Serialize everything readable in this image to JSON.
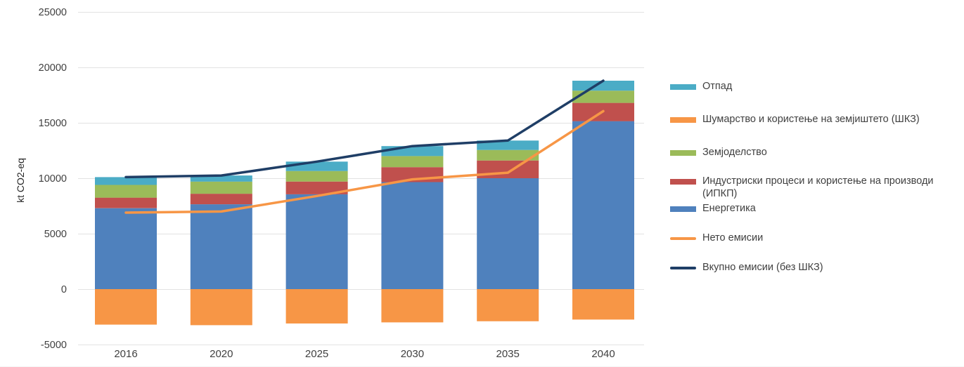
{
  "chart_data": {
    "type": "bar",
    "subtype": "stacked-bar-with-lines",
    "title": "",
    "xlabel": "",
    "ylabel": "kt CO2-eq",
    "categories": [
      "2016",
      "2020",
      "2025",
      "2030",
      "2035",
      "2040"
    ],
    "bar_series": [
      {
        "key": "energy",
        "name": "Енергетика",
        "color": "#4F81BD",
        "values": [
          7300,
          7650,
          8550,
          9650,
          10000,
          15150
        ]
      },
      {
        "key": "ippu",
        "name": "Индустриски процеси и користење на производи (ИПКП)",
        "color": "#C0504D",
        "values": [
          950,
          950,
          1150,
          1350,
          1600,
          1650
        ]
      },
      {
        "key": "agriculture",
        "name": "Земјоделство",
        "color": "#9BBB59",
        "values": [
          1150,
          1100,
          950,
          1000,
          950,
          1100
        ]
      },
      {
        "key": "waste",
        "name": "Отпад",
        "color": "#4BACC6",
        "values": [
          700,
          550,
          850,
          900,
          850,
          900
        ]
      },
      {
        "key": "lulucf",
        "name": "Шумарство и користење на земјиштето (ШКЗ)",
        "color": "#F79646",
        "values": [
          -3200,
          -3250,
          -3100,
          -3000,
          -2900,
          -2750
        ]
      }
    ],
    "line_series": [
      {
        "key": "net",
        "name": "Нето емисии",
        "color": "#F79646",
        "values": [
          6900,
          7000,
          8400,
          9900,
          10500,
          16050
        ]
      },
      {
        "key": "total",
        "name": "Вкупно емисии (без ШКЗ)",
        "color": "#1F3E66",
        "values": [
          10100,
          10250,
          11500,
          12900,
          13400,
          18800
        ]
      }
    ],
    "ylim": [
      -5000,
      25000
    ],
    "ytick_step": 5000,
    "yticks": [
      "-5000",
      "0",
      "5000",
      "10000",
      "15000",
      "20000",
      "25000"
    ],
    "grid": true,
    "legend_position": "right"
  },
  "legend": {
    "items": [
      {
        "key": "waste",
        "label": "Отпад",
        "color": "#4BACC6",
        "swatch": "bar"
      },
      {
        "key": "lulucf",
        "label": "Шумарство и користење на земјиштето (ШКЗ)",
        "color": "#F79646",
        "swatch": "bar"
      },
      {
        "key": "agriculture",
        "label": "Земјоделство",
        "color": "#9BBB59",
        "swatch": "bar"
      },
      {
        "key": "ippu",
        "label": "Индустриски процеси и користење на производи (ИПКП)",
        "color": "#C0504D",
        "swatch": "bar"
      },
      {
        "key": "energy",
        "label": "Енергетика",
        "color": "#4F81BD",
        "swatch": "bar"
      },
      {
        "key": "net",
        "label": "Нето емисии",
        "color": "#F79646",
        "swatch": "line"
      },
      {
        "key": "total",
        "label": "Вкупно емисии (без ШКЗ)",
        "color": "#1F3E66",
        "swatch": "line"
      }
    ]
  },
  "colors": {
    "grid": "#E2E2E2",
    "axis_text": "#404040",
    "background": "#FFFFFF"
  }
}
